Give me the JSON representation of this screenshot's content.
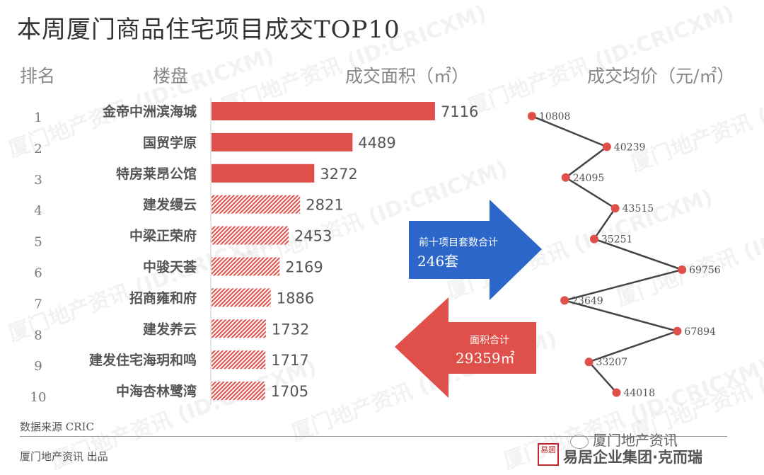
{
  "title": "本周厦门商品住宅项目成交TOP10",
  "headers": {
    "rank": "排名",
    "project": "楼盘",
    "area": "成交面积（㎡）",
    "price": "成交均价（元/㎡）"
  },
  "colors": {
    "bar": "#e0504a",
    "arrow_blue": "#2c66c8",
    "arrow_red": "#e0504a",
    "line": "#444444",
    "point": "#e0504a"
  },
  "chart_data": [
    {
      "type": "bar",
      "orientation": "horizontal",
      "categories": [
        "金帝中洲滨海城",
        "国贸学原",
        "特房莱昂公馆",
        "建发缦云",
        "中梁正荣府",
        "中骏天荟",
        "招商雍和府",
        "建发养云",
        "建发住宅海玥和鸣",
        "中海杏林鹭湾"
      ],
      "ranks": [
        "1",
        "2",
        "3",
        "4",
        "5",
        "6",
        "7",
        "8",
        "9",
        "10"
      ],
      "values": [
        7116,
        4489,
        3272,
        2821,
        2453,
        2169,
        1886,
        1732,
        1717,
        1705
      ],
      "fill_pattern": [
        "solid",
        "solid",
        "solid",
        "hatched",
        "hatched",
        "hatched",
        "hatched",
        "hatched",
        "hatched",
        "hatched"
      ],
      "ylabel": "成交面积（㎡）"
    },
    {
      "type": "line",
      "values": [
        10808,
        40239,
        24095,
        43515,
        35251,
        69756,
        23649,
        67894,
        33207,
        44018
      ],
      "ylabel": "成交均价（元/㎡）"
    }
  ],
  "callouts": {
    "blue": {
      "label": "前十项目套数合计",
      "value": "246套"
    },
    "red": {
      "label": "面积合计",
      "value": "29359㎡"
    }
  },
  "footer": {
    "source": "数据来源  CRIC",
    "publisher": "厦门地产资讯  出品",
    "wechat": "厦门地产资讯",
    "brand": "易居企业集团·克而瑞",
    "brand_seal": "易居"
  },
  "watermark": "厦门地产资讯 (ID:CRICXM)"
}
